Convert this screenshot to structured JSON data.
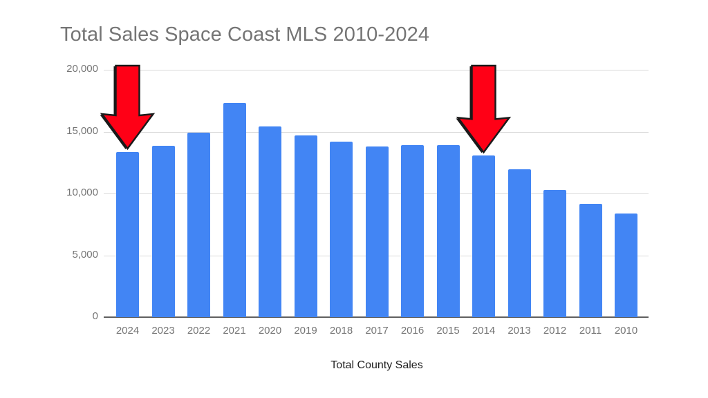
{
  "chart_data": {
    "type": "bar",
    "title": "Total Sales Space Coast MLS 2010-2024",
    "xlabel": "Total County Sales",
    "ylabel": "",
    "ylim": [
      0,
      20000
    ],
    "yticks": [
      "0",
      "5,000",
      "10,000",
      "15,000",
      "20,000"
    ],
    "grid": true,
    "legend": null,
    "bar_color": "#4285f4",
    "categories": [
      "2024",
      "2023",
      "2022",
      "2021",
      "2020",
      "2019",
      "2018",
      "2017",
      "2016",
      "2015",
      "2014",
      "2013",
      "2012",
      "2011",
      "2010"
    ],
    "values": [
      13350,
      13850,
      14900,
      17300,
      15400,
      14700,
      14200,
      13800,
      13900,
      13900,
      13050,
      11950,
      10280,
      9160,
      8380
    ],
    "annotations": [
      {
        "type": "arrow",
        "color": "#ff0016",
        "points_to": "2024"
      },
      {
        "type": "arrow",
        "color": "#ff0016",
        "points_to": "2014"
      }
    ]
  }
}
